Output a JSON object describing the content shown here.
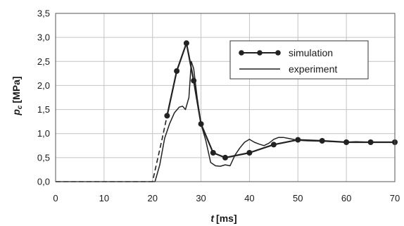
{
  "chart_data": {
    "type": "line",
    "title": "",
    "xlabel": {
      "var": "t",
      "unit": "[ms]"
    },
    "ylabel": {
      "var": "p",
      "sub": "c",
      "unit": "[MPa]"
    },
    "xlim": [
      0,
      70
    ],
    "ylim": [
      0,
      3.5
    ],
    "x_ticks": [
      "0",
      "10",
      "20",
      "30",
      "40",
      "50",
      "60",
      "70"
    ],
    "y_ticks": [
      "0,0",
      "0,5",
      "1,0",
      "1,5",
      "2,0",
      "2,5",
      "3,0",
      "3,5"
    ],
    "grid": true,
    "legend": {
      "placement": "top-right",
      "entries": [
        "simulation",
        "experiment"
      ]
    },
    "series": [
      {
        "name": "simulation",
        "style": "line-with-markers",
        "color": "#222222",
        "x": [
          0,
          20,
          23,
          25,
          27,
          28.5,
          30,
          32.5,
          35,
          40,
          45,
          50,
          55,
          60,
          65,
          70
        ],
        "y": [
          0,
          0,
          1.37,
          2.3,
          2.88,
          2.1,
          1.2,
          0.6,
          0.5,
          0.6,
          0.77,
          0.87,
          0.85,
          0.82,
          0.82,
          0.82
        ],
        "marker_x": [
          23,
          25,
          27,
          28.5,
          30,
          32.5,
          35,
          40,
          45,
          50,
          55,
          60,
          65,
          70
        ],
        "marker_y": [
          1.37,
          2.3,
          2.88,
          2.1,
          1.2,
          0.6,
          0.5,
          0.6,
          0.77,
          0.87,
          0.85,
          0.82,
          0.82,
          0.82
        ],
        "dashed_x": [
          0,
          20,
          21,
          22,
          23
        ],
        "dashed_y": [
          0,
          0,
          0.45,
          0.9,
          1.37
        ]
      },
      {
        "name": "experiment",
        "style": "line",
        "color": "#222222",
        "x": [
          0,
          20.5,
          21.5,
          22.5,
          23.5,
          24.5,
          25.5,
          26.2,
          26.8,
          27.5,
          28,
          28.5,
          29.2,
          30,
          31,
          32,
          33,
          34,
          35,
          36,
          37,
          38,
          39,
          40,
          41,
          42,
          43,
          44,
          45,
          46,
          47,
          48,
          49,
          50,
          52,
          55,
          58,
          60,
          62,
          65,
          68,
          70
        ],
        "y": [
          0,
          0,
          0.35,
          0.9,
          1.2,
          1.43,
          1.55,
          1.57,
          1.5,
          1.75,
          2.5,
          2.35,
          1.75,
          1.2,
          0.85,
          0.4,
          0.33,
          0.32,
          0.35,
          0.33,
          0.55,
          0.7,
          0.82,
          0.88,
          0.82,
          0.78,
          0.75,
          0.8,
          0.88,
          0.92,
          0.92,
          0.9,
          0.88,
          0.86,
          0.85,
          0.84,
          0.83,
          0.82,
          0.83,
          0.82,
          0.82,
          0.82
        ]
      }
    ]
  }
}
